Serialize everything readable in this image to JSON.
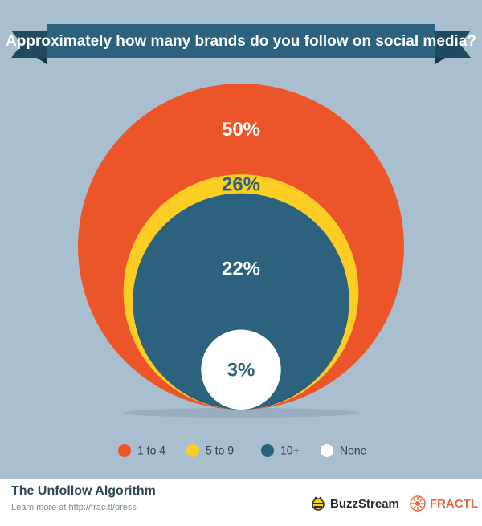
{
  "chart_data": {
    "type": "pie",
    "title": "Approximately how many brands do you follow on social media?",
    "categories": [
      "1 to 4",
      "5 to 9",
      "10+",
      "None"
    ],
    "values": [
      50,
      26,
      22,
      3
    ],
    "value_labels": [
      "50%",
      "26%",
      "22%",
      "3%"
    ],
    "colors": [
      "#ec552a",
      "#fcce24",
      "#2c627d",
      "#ffffff"
    ],
    "label_colors": [
      "#ffffff",
      "#2c627d",
      "#ffffff",
      "#2c627d"
    ],
    "legend_position": "bottom"
  },
  "colors": {
    "background": "#a9bfd0",
    "banner": "#2c627d",
    "banner_fold": "#1c4356"
  },
  "footer": {
    "title": "The Unfollow Algorithm",
    "subtitle": "Learn more at http://frac.tl/press",
    "brand_buzzstream": "BuzzStream",
    "brand_fractl": "FRACTL"
  },
  "icons": {
    "buzzstream_logo": "bee-icon",
    "fractl_logo": "sunburst-icon"
  }
}
